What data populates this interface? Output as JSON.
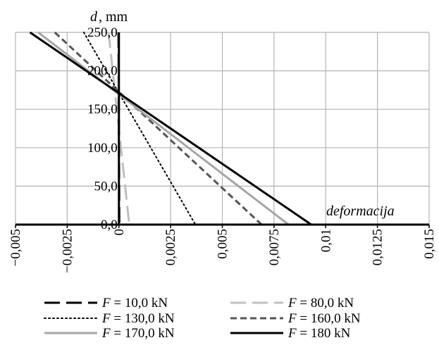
{
  "chart_data": {
    "type": "line",
    "ylabel": "d, mm",
    "ylabel_symbol": "d",
    "ylabel_unit": "mm",
    "xlabel": "deformacija",
    "xlim": [
      -0.005,
      0.015
    ],
    "ylim": [
      0,
      250
    ],
    "x_ticks": [
      -0.005,
      -0.0025,
      0,
      0.0025,
      0.005,
      0.0075,
      0.01,
      0.0125,
      0.015
    ],
    "x_tick_labels": [
      "−0,005",
      "−0,0025",
      "0",
      "0,0025",
      "0,005",
      "0,0075",
      "0,01",
      "0,0125",
      "0,015"
    ],
    "y_ticks": [
      0,
      50,
      100,
      150,
      200,
      250
    ],
    "y_tick_labels": [
      "0,0",
      "50,0",
      "100,0",
      "150,0",
      "200,0",
      "250,0"
    ],
    "grid": true,
    "legend_position": "bottom",
    "series": [
      {
        "name": "F = 10,0 kN",
        "label_symbol": "F",
        "label_value": "= 10,0 kN",
        "color": "#000000",
        "dash": "long-dash",
        "width": 3,
        "points": [
          [
            -2e-05,
            250
          ],
          [
            2e-05,
            0
          ]
        ]
      },
      {
        "name": "F = 80,0 kN",
        "label_symbol": "F",
        "label_value": "= 80,0 kN",
        "color": "#c0c0c0",
        "dash": "long-dash",
        "width": 3,
        "points": [
          [
            -0.0005,
            250
          ],
          [
            0.0005,
            0
          ]
        ]
      },
      {
        "name": "F = 130,0 kN",
        "label_symbol": "F",
        "label_value": "= 130,0 kN",
        "color": "#000000",
        "dash": "dotted",
        "width": 2,
        "points": [
          [
            -0.0017,
            250
          ],
          [
            0.0037,
            0
          ]
        ]
      },
      {
        "name": "F = 160,0 kN",
        "label_symbol": "F",
        "label_value": "= 160,0 kN",
        "color": "#555555",
        "dash": "dashed",
        "width": 3,
        "points": [
          [
            -0.0031,
            250
          ],
          [
            0.0069,
            0
          ]
        ]
      },
      {
        "name": "F = 170,0 kN",
        "label_symbol": "F",
        "label_value": "= 170,0 kN",
        "color": "#a6a6a6",
        "dash": "solid",
        "width": 3,
        "points": [
          [
            -0.0039,
            250
          ],
          [
            0.0082,
            0
          ]
        ]
      },
      {
        "name": "F = 180 kN",
        "label_symbol": "F",
        "label_value": "= 180 kN",
        "color": "#000000",
        "dash": "solid",
        "width": 3,
        "points": [
          [
            -0.0043,
            250
          ],
          [
            0.0093,
            0
          ]
        ]
      }
    ]
  }
}
